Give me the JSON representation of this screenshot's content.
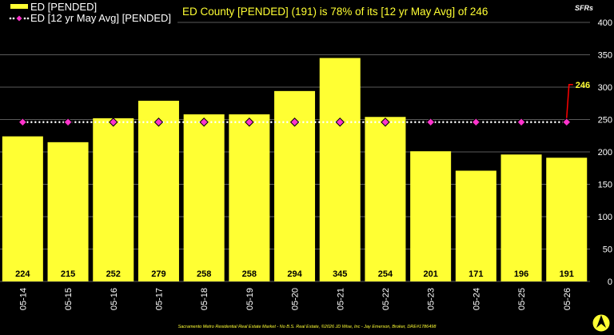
{
  "chart_data": {
    "type": "bar",
    "title": "ED County [PENDED] (191) is 78% of its [12 yr May Avg] of 246",
    "ylabel": "SFRs",
    "ylim": [
      0,
      400
    ],
    "yticks": [
      0,
      50,
      100,
      150,
      200,
      250,
      300,
      350,
      400
    ],
    "categories": [
      "05-14",
      "05-15",
      "05-16",
      "05-17",
      "05-18",
      "05-19",
      "05-20",
      "05-21",
      "05-22",
      "05-23",
      "05-24",
      "05-25",
      "05-26"
    ],
    "series": [
      {
        "name": "ED [PENDED]",
        "type": "bar",
        "color": "#ffff33",
        "values": [
          224,
          215,
          252,
          279,
          258,
          258,
          294,
          345,
          254,
          201,
          171,
          196,
          191
        ]
      },
      {
        "name": "ED [12 yr May Avg] [PENDED]",
        "type": "line",
        "color": "#ff33cc",
        "values": [
          246,
          246,
          246,
          246,
          246,
          246,
          246,
          246,
          246,
          246,
          246,
          246,
          246
        ]
      }
    ],
    "callout": {
      "label": "246",
      "color": "#ff0000"
    },
    "grid": true,
    "legend": "top-left"
  },
  "footer": "Sacramento Metro Residential Real Estate Market - No B.S. Real Estate, ©2026 JD Wise, Inc - Jay Emerson, Broker, DRE#1786498",
  "logo": {
    "icon": "compass-logo-icon"
  }
}
